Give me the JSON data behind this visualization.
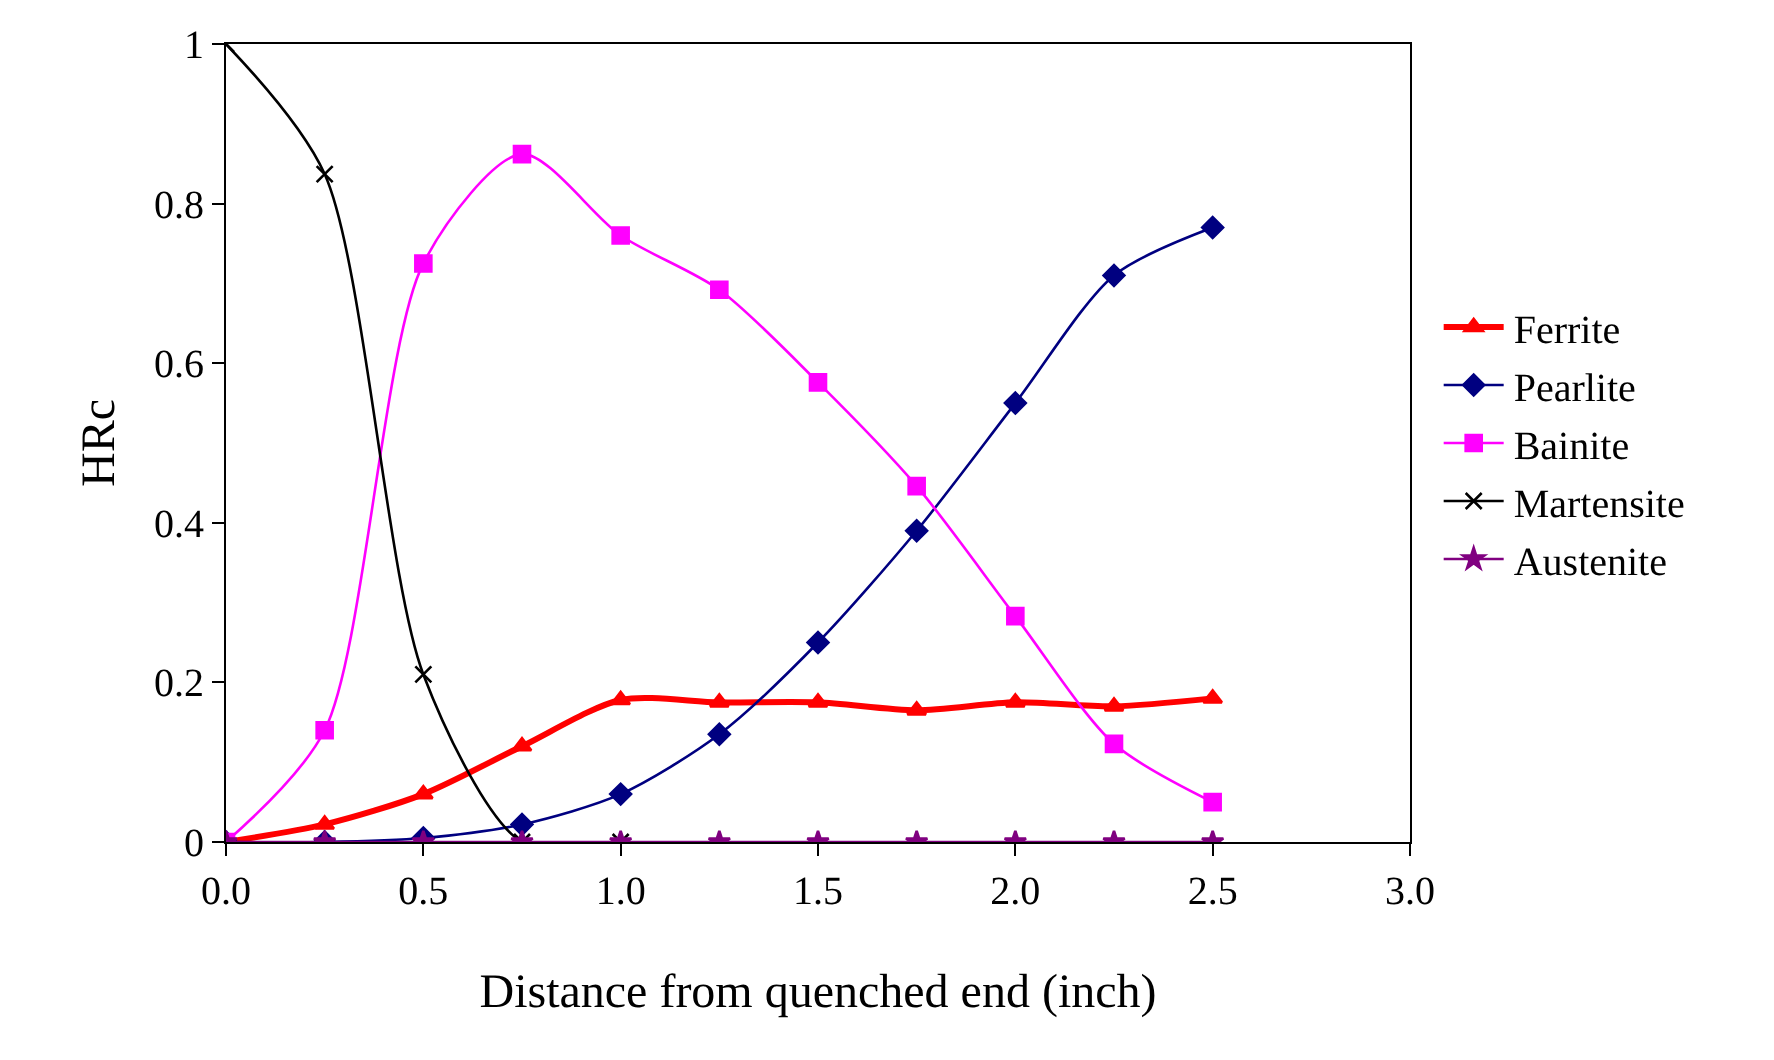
{
  "chart_data": {
    "type": "line",
    "xlabel": "Distance from quenched end (inch)",
    "ylabel": "HRc",
    "x": [
      0,
      0.25,
      0.5,
      0.75,
      1.0,
      1.25,
      1.5,
      1.75,
      2.0,
      2.25,
      2.5
    ],
    "series": [
      {
        "name": "Ferrite",
        "color": "#ff0000",
        "marker": "triangle",
        "values": [
          0,
          0.022,
          0.06,
          0.12,
          0.178,
          0.175,
          0.175,
          0.165,
          0.175,
          0.17,
          0.18
        ]
      },
      {
        "name": "Pearlite",
        "color": "#000080",
        "marker": "diamond",
        "values": [
          0,
          0,
          0.005,
          0.022,
          0.06,
          0.135,
          0.25,
          0.39,
          0.55,
          0.71,
          0.77
        ]
      },
      {
        "name": "Bainite",
        "color": "#ff00ff",
        "marker": "square",
        "values": [
          0,
          0.14,
          0.725,
          0.862,
          0.76,
          0.692,
          0.576,
          0.446,
          0.283,
          0.123,
          0.05
        ]
      },
      {
        "name": "Martensite",
        "color": "#000000",
        "marker": "cross",
        "values": [
          1.0,
          0.837,
          0.21,
          0,
          0,
          null,
          null,
          null,
          null,
          null,
          null
        ]
      },
      {
        "name": "Austenite",
        "color": "#800080",
        "marker": "star",
        "values": [
          0,
          0,
          0,
          0,
          0,
          0,
          0,
          0,
          0,
          0,
          0
        ]
      }
    ],
    "xlim": [
      0,
      3
    ],
    "xticks": [
      {
        "value": 0,
        "label": "0.0"
      },
      {
        "value": 0.5,
        "label": "0.5"
      },
      {
        "value": 1,
        "label": "1.0"
      },
      {
        "value": 1.5,
        "label": "1.5"
      },
      {
        "value": 2,
        "label": "2.0"
      },
      {
        "value": 2.5,
        "label": "2.5"
      },
      {
        "value": 3,
        "label": "3.0"
      }
    ],
    "ylim": [
      0,
      1
    ],
    "yticks": [
      0,
      0.2,
      0.4,
      0.6,
      0.8,
      1
    ],
    "grid": false,
    "legend": "right"
  }
}
